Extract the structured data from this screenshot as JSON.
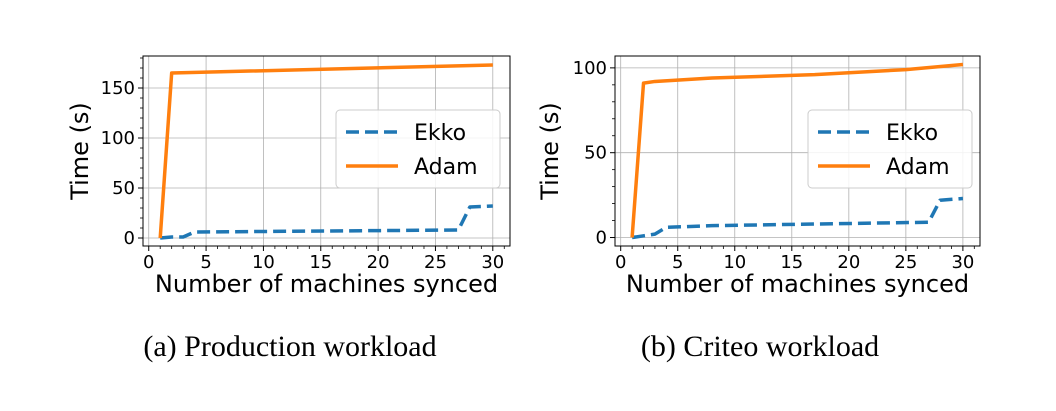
{
  "chart_data": [
    {
      "type": "line",
      "caption": "(a) Production workload",
      "xlabel": "Number of machines synced",
      "ylabel": "Time (s)",
      "xlim": [
        -0.5,
        31.5
      ],
      "ylim": [
        -8,
        182
      ],
      "xticks": [
        0,
        5,
        10,
        15,
        20,
        25,
        30
      ],
      "yticks": [
        0,
        50,
        100,
        150
      ],
      "grid": true,
      "legend_position": "center-right",
      "series": [
        {
          "name": "Ekko",
          "color": "#1f77b4",
          "style": "dashed",
          "x": [
            1,
            2,
            3,
            4,
            27,
            28,
            30
          ],
          "y": [
            0,
            1,
            1,
            6,
            8,
            31,
            32
          ]
        },
        {
          "name": "Adam",
          "color": "#ff7f0e",
          "style": "solid",
          "x": [
            1,
            2,
            30
          ],
          "y": [
            0,
            165,
            173
          ]
        }
      ]
    },
    {
      "type": "line",
      "caption": "(b) Criteo workload",
      "xlabel": "Number of machines synced",
      "ylabel": "Time (s)",
      "xlim": [
        -0.5,
        31.5
      ],
      "ylim": [
        -5,
        107
      ],
      "xticks": [
        0,
        5,
        10,
        15,
        20,
        25,
        30
      ],
      "yticks": [
        0,
        50,
        100
      ],
      "grid": true,
      "legend_position": "center-right",
      "series": [
        {
          "name": "Ekko",
          "color": "#1f77b4",
          "style": "dashed",
          "x": [
            1,
            2,
            3,
            4,
            8,
            27,
            28,
            30
          ],
          "y": [
            0,
            1,
            2,
            6,
            7,
            9,
            22,
            23
          ]
        },
        {
          "name": "Adam",
          "color": "#ff7f0e",
          "style": "solid",
          "x": [
            1,
            2,
            3,
            8,
            17,
            25,
            30
          ],
          "y": [
            0,
            91,
            92,
            94,
            96,
            99,
            102
          ]
        }
      ]
    }
  ]
}
